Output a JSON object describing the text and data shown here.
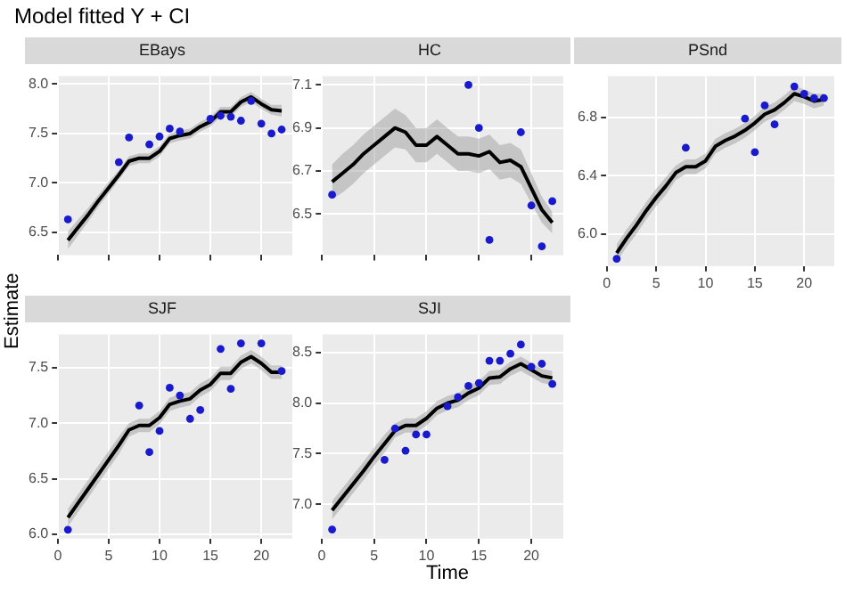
{
  "chart_data": [
    {
      "type": "line",
      "title": "EBays",
      "ylabel": "Estimate",
      "annotations": [
        "Model fitted Y + CI"
      ],
      "xlim": [
        -0.05,
        23.05
      ],
      "xticks": [
        0,
        5,
        10,
        15,
        20
      ],
      "ylim": [
        6.27,
        8.08
      ],
      "yticks": [
        6.5,
        {
          "value": 7,
          "label": "7.0"
        },
        7.5,
        {
          "value": 8,
          "label": "8.0"
        }
      ],
      "grid": true,
      "tick_labels": "y",
      "series": [
        {
          "type": "line",
          "color": "#000000",
          "x": [
            1,
            2,
            3,
            4,
            5,
            6,
            7,
            8,
            9,
            10,
            11,
            12,
            13,
            14,
            15,
            16,
            17,
            18,
            19,
            20,
            21,
            22
          ],
          "values": [
            6.42,
            6.55,
            6.68,
            6.82,
            6.95,
            7.08,
            7.22,
            7.25,
            7.25,
            7.32,
            7.45,
            7.48,
            7.5,
            7.57,
            7.62,
            7.72,
            7.72,
            7.82,
            7.87,
            7.8,
            7.74,
            7.73
          ],
          "lower": [
            6.33,
            6.47,
            6.61,
            6.76,
            6.89,
            7.03,
            7.17,
            7.2,
            7.2,
            7.27,
            7.4,
            7.43,
            7.45,
            7.52,
            7.57,
            7.67,
            7.67,
            7.77,
            7.82,
            7.75,
            7.69,
            7.67
          ],
          "upper": [
            6.51,
            6.63,
            6.75,
            6.88,
            7.01,
            7.13,
            7.27,
            7.3,
            7.3,
            7.37,
            7.5,
            7.53,
            7.55,
            7.62,
            7.67,
            7.77,
            7.77,
            7.87,
            7.92,
            7.85,
            7.79,
            7.79
          ]
        },
        {
          "type": "scatter",
          "color": "#1a1acd",
          "marker": "circle",
          "x": [
            1,
            6,
            7,
            9,
            10,
            11,
            12,
            15,
            16,
            17,
            18,
            19,
            20,
            21,
            22
          ],
          "values": [
            6.63,
            7.21,
            7.46,
            7.39,
            7.47,
            7.55,
            7.52,
            7.65,
            7.68,
            7.67,
            7.63,
            7.83,
            7.6,
            7.5,
            7.54
          ]
        }
      ]
    },
    {
      "type": "line",
      "title": "HC",
      "xlim": [
        -0.05,
        23.05
      ],
      "xticks": [
        0,
        5,
        10,
        15,
        20
      ],
      "ylim": [
        6.31,
        7.14
      ],
      "yticks": [
        6.5,
        6.7,
        6.9,
        7.1
      ],
      "grid": true,
      "tick_labels": "y",
      "series": [
        {
          "type": "line",
          "color": "#000000",
          "x": [
            1,
            2,
            3,
            4,
            5,
            6,
            7,
            8,
            9,
            10,
            11,
            12,
            13,
            14,
            15,
            16,
            17,
            18,
            19,
            20,
            21,
            22
          ],
          "values": [
            6.65,
            6.69,
            6.73,
            6.78,
            6.82,
            6.86,
            6.9,
            6.88,
            6.82,
            6.82,
            6.86,
            6.82,
            6.78,
            6.78,
            6.77,
            6.79,
            6.74,
            6.75,
            6.72,
            6.62,
            6.52,
            6.46
          ],
          "lower": [
            6.57,
            6.6,
            6.64,
            6.69,
            6.73,
            6.77,
            6.81,
            6.8,
            6.74,
            6.74,
            6.78,
            6.74,
            6.7,
            6.7,
            6.69,
            6.71,
            6.66,
            6.67,
            6.64,
            6.55,
            6.46,
            6.41
          ],
          "upper": [
            6.73,
            6.78,
            6.82,
            6.87,
            6.91,
            6.95,
            6.99,
            6.96,
            6.9,
            6.9,
            6.94,
            6.9,
            6.86,
            6.86,
            6.85,
            6.87,
            6.82,
            6.83,
            6.8,
            6.69,
            6.58,
            6.51
          ]
        },
        {
          "type": "scatter",
          "color": "#1a1acd",
          "marker": "circle",
          "x": [
            1,
            14,
            15,
            16,
            19,
            20,
            21,
            22
          ],
          "values": [
            6.59,
            7.1,
            6.9,
            6.38,
            6.88,
            6.54,
            6.35,
            6.56
          ]
        }
      ]
    },
    {
      "type": "line",
      "title": "PSnd",
      "xlim": [
        -0.05,
        23.05
      ],
      "xticks": [
        0,
        5,
        10,
        15,
        20
      ],
      "ylim": [
        5.78,
        7.08
      ],
      "yticks": [
        {
          "value": 6,
          "label": "6.0"
        },
        6.4,
        6.8
      ],
      "grid": true,
      "series": [
        {
          "type": "line",
          "color": "#000000",
          "x": [
            1,
            2,
            3,
            4,
            5,
            6,
            7,
            8,
            9,
            10,
            11,
            12,
            13,
            14,
            15,
            16,
            17,
            18,
            19,
            20,
            21,
            22
          ],
          "values": [
            5.87,
            5.97,
            6.06,
            6.16,
            6.25,
            6.33,
            6.42,
            6.46,
            6.46,
            6.5,
            6.6,
            6.64,
            6.67,
            6.71,
            6.76,
            6.82,
            6.85,
            6.9,
            6.96,
            6.94,
            6.91,
            6.92
          ],
          "lower": [
            5.81,
            5.91,
            6.0,
            6.1,
            6.19,
            6.27,
            6.37,
            6.41,
            6.41,
            6.45,
            6.55,
            6.59,
            6.62,
            6.66,
            6.71,
            6.77,
            6.8,
            6.85,
            6.91,
            6.89,
            6.86,
            6.88
          ],
          "upper": [
            5.93,
            6.03,
            6.12,
            6.22,
            6.31,
            6.39,
            6.47,
            6.51,
            6.51,
            6.55,
            6.65,
            6.69,
            6.72,
            6.76,
            6.81,
            6.87,
            6.9,
            6.95,
            7.01,
            6.99,
            6.96,
            6.96
          ]
        },
        {
          "type": "scatter",
          "color": "#1a1acd",
          "marker": "circle",
          "x": [
            1,
            8,
            14,
            15,
            16,
            17,
            19,
            20,
            21,
            22
          ],
          "values": [
            5.83,
            6.59,
            6.79,
            6.56,
            6.88,
            6.75,
            7.01,
            6.96,
            6.93,
            6.93
          ]
        }
      ]
    },
    {
      "type": "line",
      "title": "SJF",
      "xlim": [
        -0.05,
        23.05
      ],
      "xticks": [
        0,
        5,
        10,
        15,
        20
      ],
      "ylim": [
        5.96,
        7.8
      ],
      "yticks": [
        {
          "value": 6,
          "label": "6.0"
        },
        6.5,
        {
          "value": 7,
          "label": "7.0"
        },
        7.5
      ],
      "grid": true,
      "series": [
        {
          "type": "line",
          "color": "#000000",
          "x": [
            1,
            2,
            3,
            4,
            5,
            6,
            7,
            8,
            9,
            10,
            11,
            12,
            13,
            14,
            15,
            16,
            17,
            18,
            19,
            20,
            21,
            22
          ],
          "values": [
            6.15,
            6.28,
            6.41,
            6.54,
            6.67,
            6.8,
            6.94,
            6.98,
            6.98,
            7.05,
            7.17,
            7.2,
            7.22,
            7.3,
            7.35,
            7.45,
            7.45,
            7.55,
            7.6,
            7.54,
            7.46,
            7.46
          ],
          "lower": [
            6.07,
            6.2,
            6.33,
            6.46,
            6.59,
            6.72,
            6.88,
            6.92,
            6.92,
            6.99,
            7.11,
            7.14,
            7.16,
            7.24,
            7.29,
            7.39,
            7.39,
            7.49,
            7.54,
            7.48,
            7.4,
            7.4
          ],
          "upper": [
            6.23,
            6.36,
            6.49,
            6.62,
            6.75,
            6.88,
            7.0,
            7.04,
            7.04,
            7.11,
            7.23,
            7.26,
            7.28,
            7.36,
            7.41,
            7.51,
            7.51,
            7.61,
            7.66,
            7.6,
            7.52,
            7.52
          ]
        },
        {
          "type": "scatter",
          "color": "#1a1acd",
          "marker": "circle",
          "x": [
            1,
            8,
            9,
            10,
            11,
            12,
            13,
            14,
            16,
            17,
            18,
            20,
            22
          ],
          "values": [
            6.04,
            7.16,
            6.74,
            6.93,
            7.32,
            7.25,
            7.04,
            7.12,
            7.67,
            7.31,
            7.72,
            7.72,
            7.47
          ]
        }
      ]
    },
    {
      "type": "line",
      "title": "SJI",
      "xlabel": "Time",
      "xlim": [
        -0.05,
        23.05
      ],
      "xticks": [
        0,
        5,
        10,
        15,
        20
      ],
      "ylim": [
        6.66,
        8.68
      ],
      "yticks": [
        {
          "value": 7,
          "label": "7.0"
        },
        7.5,
        {
          "value": 8,
          "label": "8.0"
        },
        8.5
      ],
      "grid": true,
      "series": [
        {
          "type": "line",
          "color": "#000000",
          "x": [
            1,
            2,
            3,
            4,
            5,
            6,
            7,
            8,
            9,
            10,
            11,
            12,
            13,
            14,
            15,
            16,
            17,
            18,
            19,
            20,
            21,
            22
          ],
          "values": [
            6.94,
            7.07,
            7.2,
            7.33,
            7.47,
            7.6,
            7.73,
            7.78,
            7.78,
            7.85,
            7.95,
            8.0,
            8.03,
            8.1,
            8.15,
            8.25,
            8.26,
            8.34,
            8.39,
            8.33,
            8.27,
            8.25
          ],
          "lower": [
            6.85,
            6.98,
            7.11,
            7.24,
            7.38,
            7.51,
            7.66,
            7.71,
            7.71,
            7.78,
            7.88,
            7.93,
            7.96,
            8.03,
            8.08,
            8.18,
            8.19,
            8.27,
            8.32,
            8.26,
            8.2,
            8.18
          ],
          "upper": [
            7.03,
            7.16,
            7.29,
            7.42,
            7.56,
            7.69,
            7.8,
            7.85,
            7.85,
            7.92,
            8.02,
            8.07,
            8.1,
            8.17,
            8.22,
            8.32,
            8.33,
            8.41,
            8.46,
            8.4,
            8.34,
            8.32
          ]
        },
        {
          "type": "scatter",
          "color": "#1a1acd",
          "marker": "circle",
          "x": [
            1,
            6,
            7,
            8,
            9,
            10,
            12,
            13,
            14,
            15,
            16,
            17,
            18,
            19,
            20,
            21,
            22
          ],
          "values": [
            6.75,
            7.44,
            7.75,
            7.53,
            7.69,
            7.69,
            7.97,
            8.06,
            8.17,
            8.2,
            8.42,
            8.42,
            8.49,
            8.58,
            8.36,
            8.39,
            8.19
          ]
        }
      ]
    }
  ]
}
